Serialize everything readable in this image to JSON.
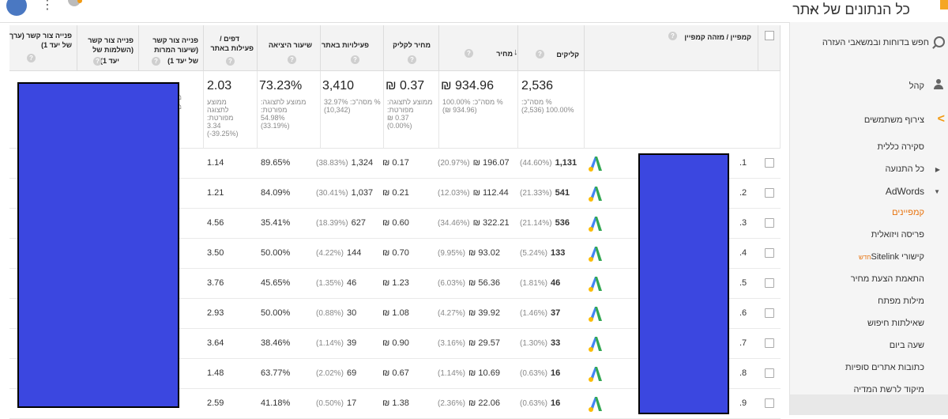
{
  "header": {
    "page_title": "כל הנתונים של אתר",
    "title_caret": "▼",
    "kebab": "⋮"
  },
  "sidebar": {
    "search_label": "חפש בדוחות ובמשאבי העזרה",
    "audience_label": "קהל",
    "user_flow_label": "צירוף משתמשים",
    "items": [
      {
        "label": "סקירה כללית"
      },
      {
        "label": "כל התנועה"
      },
      {
        "label": "AdWords"
      },
      {
        "label": "קמפיינים"
      },
      {
        "label": "פריסה ויזואלית"
      },
      {
        "label": "קישורי Sitelink",
        "badge": "חדש"
      },
      {
        "label": "התאמת הצעת מחיר"
      },
      {
        "label": "מילות מפתח"
      },
      {
        "label": "שאילתות חיפוש"
      },
      {
        "label": "שעה ביום"
      },
      {
        "label": "כתובות אתרים סופיות"
      },
      {
        "label": "מיקוד לרשת המדיה"
      }
    ]
  },
  "table": {
    "headers": {
      "campaign": "קמפיין / מזהה קמפיין",
      "clicks": "קליקים",
      "cost": "מחיר",
      "cpc": "מחיר לקליק",
      "site_actions": "פעילויות באתר",
      "bounce": "שיעור היציאה",
      "pages_l1": "דפים /",
      "pages_l2": "פעילות באתר",
      "goal1_l1": "פנייה צור קשר",
      "goal1_l2": "(שיעור המרות",
      "goal1_l3": "של יעד 1)",
      "goal2_l1": "פנייה צור קשר",
      "goal2_l2": "(השלמות של",
      "goal2_l3": "יעד 1)",
      "goal3_l1": "פנייה צור קשר (ערך",
      "goal3_l2": "של יעד 1)",
      "help": "?",
      "sort": "↓"
    },
    "summary": {
      "clicks": "2,536",
      "clicks_sub1": "% מסה\"כ:",
      "clicks_sub2": "(2,536) 100.00%",
      "cost": "₪ 934.96",
      "cost_sub1": "100.00% :מסה\"כ %",
      "cost_sub2": "(₪ 934.96)",
      "cpc": "₪ 0.37",
      "cpc_sub1": "ממוצע לתצוגה:",
      "cpc_sub2": "מפורטת:",
      "cpc_sub3": "₪ 0.37",
      "cpc_sub4": "(0.00%)",
      "sessions": "3,410",
      "sessions_sub1": "32.97% :מסה\"כ %",
      "sessions_sub2": "(10,342)",
      "bounce": "73.23%",
      "bounce_sub1": "ממוצע לתצוגה:",
      "bounce_sub2": "מפורטת:",
      "bounce_sub3": "54.98%",
      "bounce_sub4": "(33.19%)",
      "pages": "2.03",
      "pages_sub1": "ממוצע",
      "pages_sub2": "לתצוגה",
      "pages_sub3": "מפורטת:",
      "pages_sub4": "3.34",
      "pages_sub5": "(-39.25%)",
      "goal1_sub1": "ממ",
      "goal1_sub2": "מפו"
    },
    "rows": [
      {
        "num": ".1",
        "clicks": "1,131",
        "clicks_pct": "(44.60%)",
        "cost": "₪ 196.07",
        "cost_pct": "(20.97%)",
        "cpc": "₪ 0.17",
        "sessions": "1,324",
        "sessions_pct": "(38.83%)",
        "bounce": "89.65%",
        "pages": "1.14"
      },
      {
        "num": ".2",
        "clicks": "541",
        "clicks_pct": "(21.33%)",
        "cost": "₪ 112.44",
        "cost_pct": "(12.03%)",
        "cpc": "₪ 0.21",
        "sessions": "1,037",
        "sessions_pct": "(30.41%)",
        "bounce": "84.09%",
        "pages": "1.21"
      },
      {
        "num": ".3",
        "clicks": "536",
        "clicks_pct": "(21.14%)",
        "cost": "₪ 322.21",
        "cost_pct": "(34.46%)",
        "cpc": "₪ 0.60",
        "sessions": "627",
        "sessions_pct": "(18.39%)",
        "bounce": "35.41%",
        "pages": "4.56"
      },
      {
        "num": ".4",
        "clicks": "133",
        "clicks_pct": "(5.24%)",
        "cost": "₪ 93.02",
        "cost_pct": "(9.95%)",
        "cpc": "₪ 0.70",
        "sessions": "144",
        "sessions_pct": "(4.22%)",
        "bounce": "50.00%",
        "pages": "3.50"
      },
      {
        "num": ".5",
        "clicks": "46",
        "clicks_pct": "(1.81%)",
        "cost": "₪ 56.36",
        "cost_pct": "(6.03%)",
        "cpc": "₪ 1.23",
        "sessions": "46",
        "sessions_pct": "(1.35%)",
        "bounce": "45.65%",
        "pages": "3.76"
      },
      {
        "num": ".6",
        "clicks": "37",
        "clicks_pct": "(1.46%)",
        "cost": "₪ 39.92",
        "cost_pct": "(4.27%)",
        "cpc": "₪ 1.08",
        "sessions": "30",
        "sessions_pct": "(0.88%)",
        "bounce": "50.00%",
        "pages": "2.93"
      },
      {
        "num": ".7",
        "clicks": "33",
        "clicks_pct": "(1.30%)",
        "cost": "₪ 29.57",
        "cost_pct": "(3.16%)",
        "cpc": "₪ 0.90",
        "sessions": "39",
        "sessions_pct": "(1.14%)",
        "bounce": "38.46%",
        "pages": "3.64"
      },
      {
        "num": ".8",
        "clicks": "16",
        "clicks_pct": "(0.63%)",
        "cost": "₪ 10.69",
        "cost_pct": "(1.14%)",
        "cpc": "₪ 0.67",
        "sessions": "69",
        "sessions_pct": "(2.02%)",
        "bounce": "63.77%",
        "pages": "1.48"
      },
      {
        "num": ".9",
        "clicks": "16",
        "clicks_pct": "(0.63%)",
        "cost": "₪ 22.06",
        "cost_pct": "(2.36%)",
        "cpc": "₪ 1.38",
        "sessions": "17",
        "sessions_pct": "(0.50%)",
        "bounce": "41.18%",
        "pages": "2.59"
      }
    ]
  },
  "icons": {
    "adwords": "adwords-logo-icon",
    "search": "search-icon",
    "person": "person-icon",
    "flow": "flow-icon"
  },
  "colors": {
    "redaction": "#3b47e0",
    "accent": "#e8710a"
  }
}
